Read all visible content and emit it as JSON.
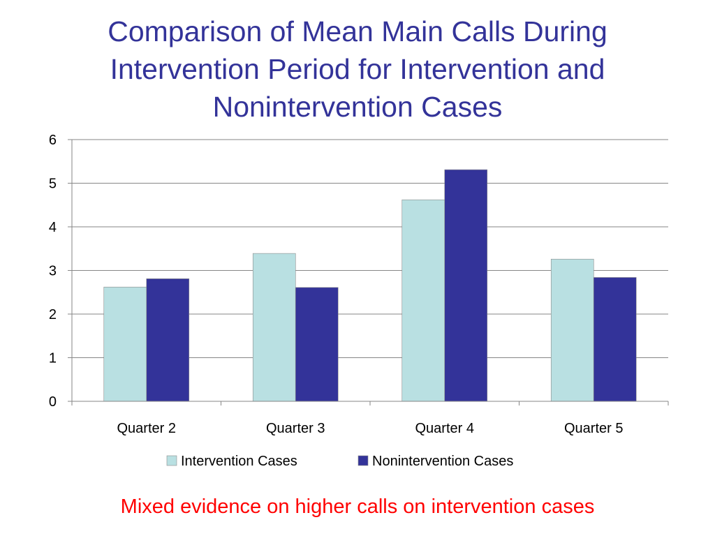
{
  "slide": {
    "title_lines": [
      "Comparison of Mean Main Calls During",
      "Intervention Period for Intervention and",
      "Nonintervention Cases"
    ],
    "caption": "Mixed evidence on higher calls on intervention cases"
  },
  "colors": {
    "title": "#333399",
    "caption": "#ff0000",
    "intervention": "#b9e0e2",
    "nonintervention": "#333399",
    "gridline": "#868686"
  },
  "chart_data": {
    "type": "bar",
    "categories": [
      "Quarter 2",
      "Quarter 3",
      "Quarter 4",
      "Quarter 5"
    ],
    "series": [
      {
        "name": "Intervention Cases",
        "values": [
          2.62,
          3.39,
          4.62,
          3.26
        ]
      },
      {
        "name": "Nonintervention Cases",
        "values": [
          2.81,
          2.61,
          5.31,
          2.84
        ]
      }
    ],
    "ylim": [
      0,
      6
    ],
    "yticks": [
      "0",
      "1",
      "2",
      "3",
      "4",
      "5",
      "6"
    ],
    "grid": true,
    "legend_position": "bottom"
  }
}
